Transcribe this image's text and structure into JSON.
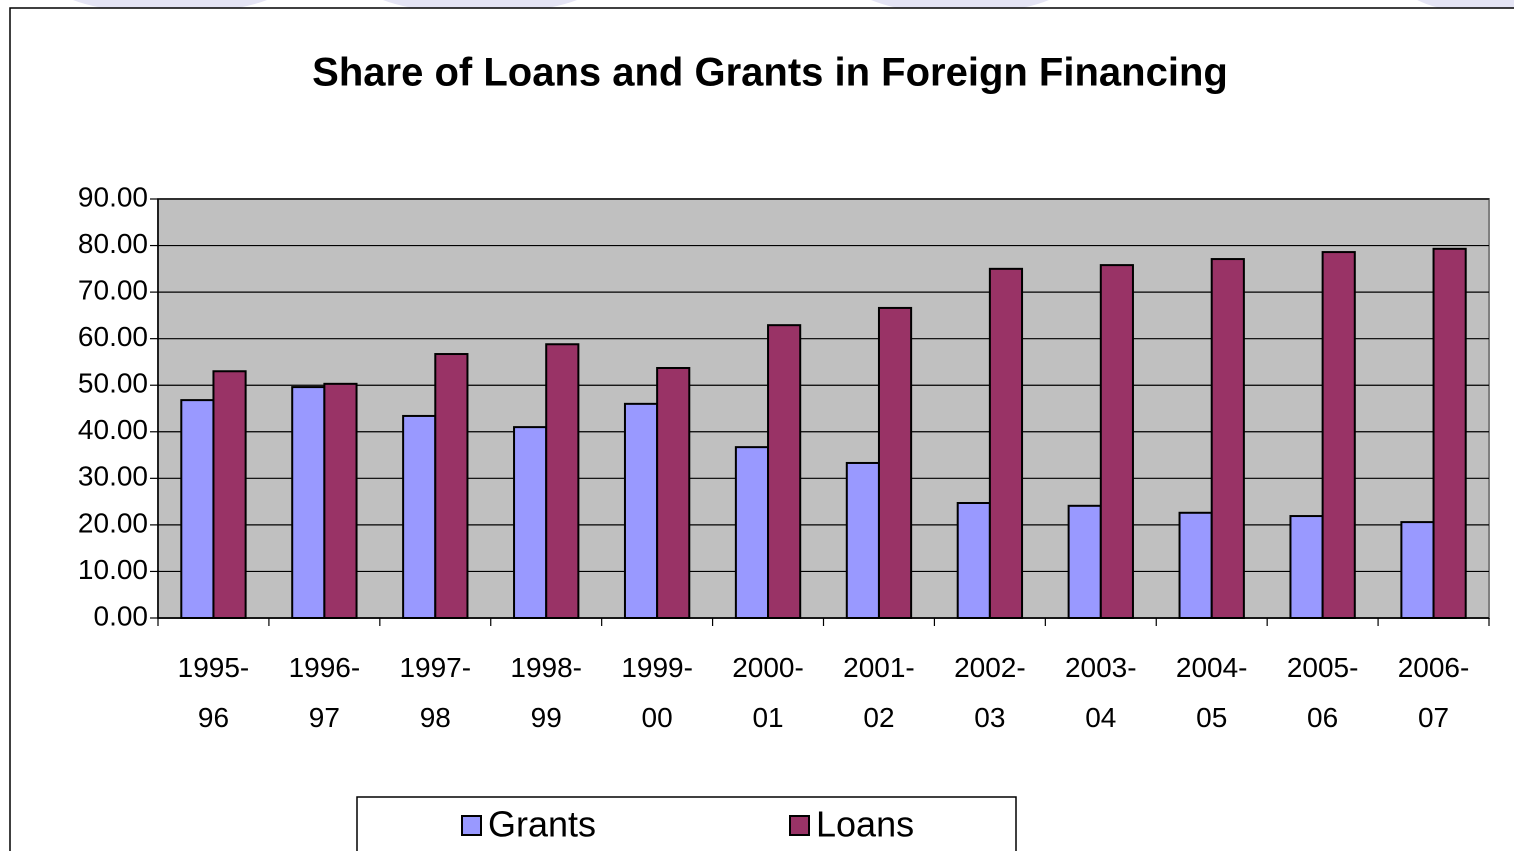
{
  "chart_data": {
    "type": "bar",
    "title": "Share of Loans and Grants in Foreign Financing",
    "categories": [
      [
        "1995-",
        "96"
      ],
      [
        "1996-",
        "97"
      ],
      [
        "1997-",
        "98"
      ],
      [
        "1998-",
        "99"
      ],
      [
        "1999-",
        "00"
      ],
      [
        "2000-",
        "01"
      ],
      [
        "2001-",
        "02"
      ],
      [
        "2002-",
        "03"
      ],
      [
        "2003-",
        "04"
      ],
      [
        "2004-",
        "05"
      ],
      [
        "2005-",
        "06"
      ],
      [
        "2006-",
        "07"
      ]
    ],
    "series": [
      {
        "name": "Grants",
        "color": "#9999ff",
        "values": [
          46.8,
          49.6,
          43.4,
          41.0,
          46.0,
          36.7,
          33.3,
          24.7,
          24.1,
          22.6,
          21.9,
          20.6
        ]
      },
      {
        "name": "Loans",
        "color": "#993366",
        "values": [
          53.0,
          50.3,
          56.7,
          58.8,
          53.7,
          62.9,
          66.6,
          75.0,
          75.8,
          77.1,
          78.6,
          79.3
        ]
      }
    ],
    "ylim": [
      0,
      90
    ],
    "yticks": [
      {
        "value": 0,
        "label": "0.00"
      },
      {
        "value": 10,
        "label": "10.00"
      },
      {
        "value": 20,
        "label": "20.00"
      },
      {
        "value": 30,
        "label": "30.00"
      },
      {
        "value": 40,
        "label": "40.00"
      },
      {
        "value": 50,
        "label": "50.00"
      },
      {
        "value": 60,
        "label": "60.00"
      },
      {
        "value": 70,
        "label": "70.00"
      },
      {
        "value": 80,
        "label": "80.00"
      },
      {
        "value": 90,
        "label": "90.00"
      }
    ],
    "grid": true,
    "legend": "bottom"
  }
}
